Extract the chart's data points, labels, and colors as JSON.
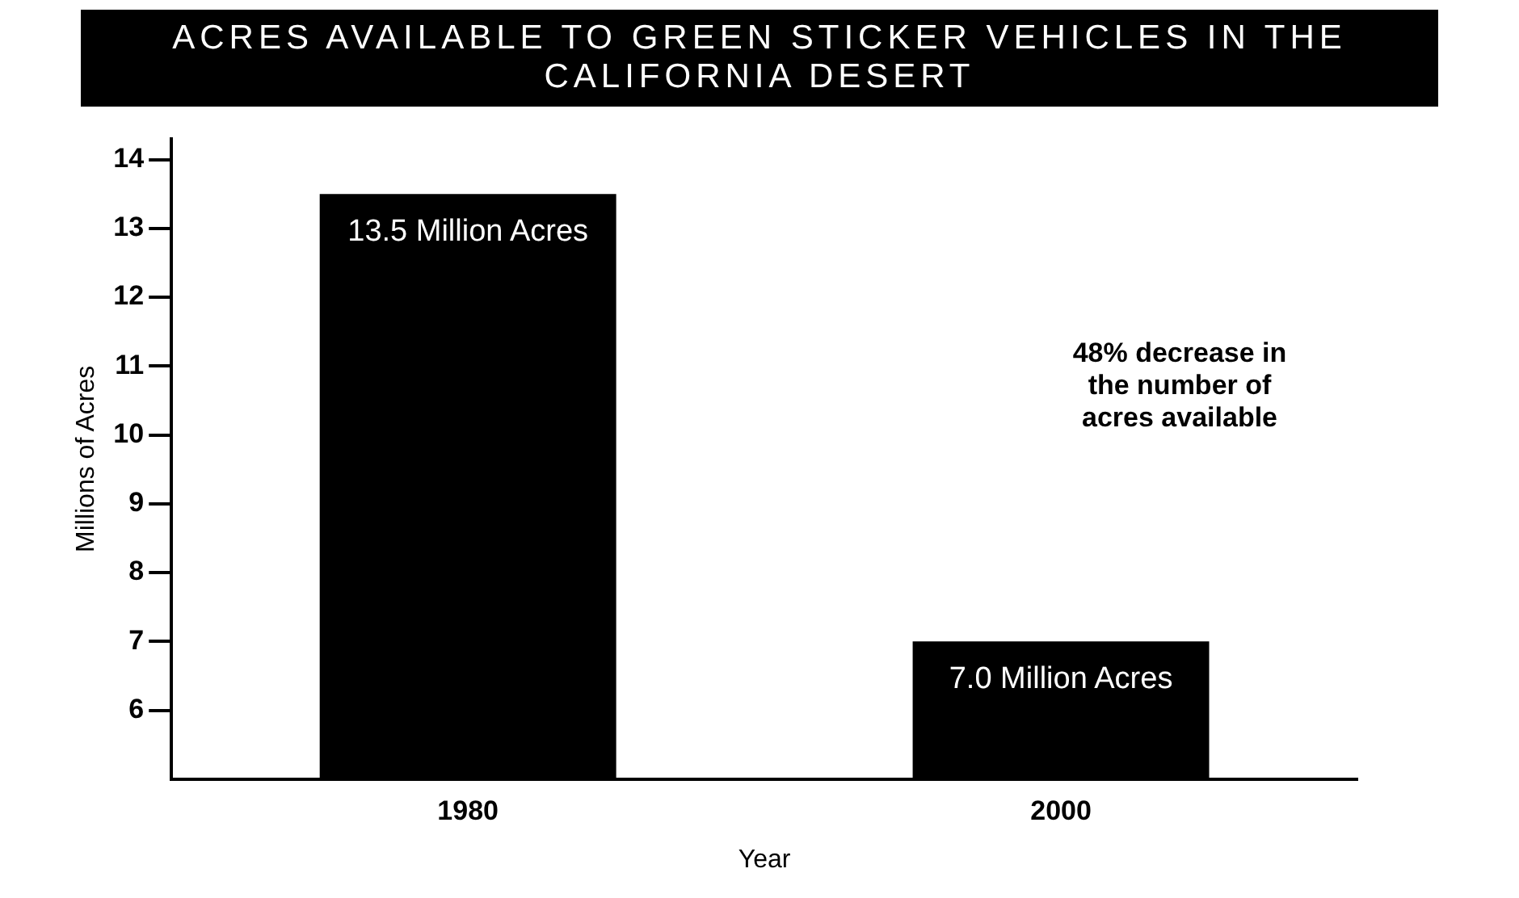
{
  "chart_data": {
    "type": "bar",
    "title": "ACRES AVAILABLE TO GREEN STICKER VEHICLES IN THE CALIFORNIA DESERT",
    "categories": [
      "1980",
      "2000"
    ],
    "values": [
      13.5,
      7.0
    ],
    "color": "#000000",
    "value_labels": [
      "13.5 Million Acres",
      "7.0 Million Acres"
    ],
    "xlabel": "Year",
    "ylabel": "Millions of Acres",
    "ylim": [
      5,
      14.3
    ],
    "yticks": [
      6,
      7,
      8,
      9,
      10,
      11,
      12,
      13,
      14
    ],
    "grid": false,
    "legend": false,
    "annotations": [
      "48% decrease in the number of acres available"
    ]
  }
}
